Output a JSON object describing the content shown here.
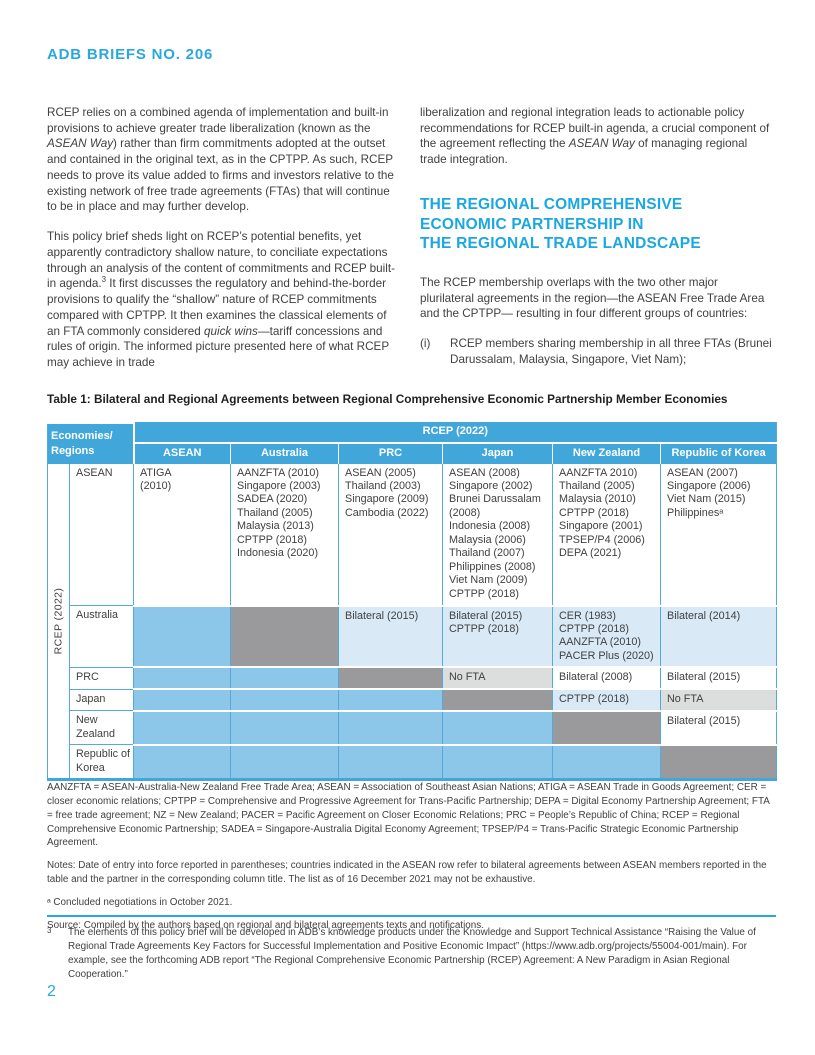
{
  "header": {
    "brief_title": "ADB BRIEFS NO. 206"
  },
  "colors": {
    "accent": "#29a8e0",
    "heading_blue": "#1ba7e0",
    "table_header_blue": "#41a7da",
    "table_corner_blue": "#2f9dd3",
    "cell_blue": "#8cc6e9",
    "cell_lightblue": "#d9eaf6",
    "cell_gray": "#9a9a9c",
    "cell_lightgray": "#dcdddd",
    "table_border_blue": "#54abdb"
  },
  "body": {
    "left_col": {
      "para1": [
        {
          "t": "RCEP relies on a combined agenda of implementation and built-in provisions to achieve greater trade liberalization (known as the "
        },
        {
          "t": "ASEAN Way",
          "style": "i"
        },
        {
          "t": ") rather than firm commitments adopted at the outset and contained in the original text, as in the CPTPP. As such, RCEP needs to prove its value added to firms and investors relative to the existing network of free trade agreements (FTAs) that will continue to be in place and may further develop."
        }
      ],
      "para2": [
        {
          "t": "This policy brief sheds light on RCEP’s potential benefits, yet apparently contradictory shallow nature, to conciliate expectations through an analysis of the content of commitments and RCEP built-in agenda."
        },
        {
          "t": "3",
          "style": "sup"
        },
        {
          "t": " It first discusses the regulatory and behind-the-border provisions to qualify the “shallow” nature of RCEP commitments compared with CPTPP. It then examines the classical elements of an FTA commonly considered "
        },
        {
          "t": "quick wins",
          "style": "i"
        },
        {
          "t": "—tariff concessions and rules of origin. The informed picture presented here of what RCEP may achieve in trade"
        }
      ]
    },
    "right_col": {
      "para1": [
        {
          "t": "liberalization and regional integration leads to actionable policy recommendations for RCEP built-in agenda, a crucial component of the agreement reflecting the "
        },
        {
          "t": "ASEAN Way",
          "style": "i"
        },
        {
          "t": " of managing regional trade integration."
        }
      ],
      "section_heading_lines": [
        "THE REGIONAL COMPREHENSIVE",
        "ECONOMIC PARTNERSHIP IN",
        "THE REGIONAL TRADE LANDSCAPE"
      ],
      "para2": "The RCEP membership overlaps with the two other major plurilateral agreements in the region—the ASEAN Free Trade Area and the CPTPP— resulting in four different groups of countries:",
      "list": [
        {
          "marker": "(i)",
          "text": "RCEP members sharing membership in all three FTAs (Brunei Darussalam, Malaysia, Singapore, Viet Nam);"
        }
      ]
    }
  },
  "table": {
    "title": "Table 1: Bilateral and Regional Agreements between Regional Comprehensive Economic Partnership Member Economies",
    "corner_lines": [
      "Economies/",
      "Regions"
    ],
    "group_header": "RCEP (2022)",
    "columns": [
      "ASEAN",
      "Australia",
      "PRC",
      "Japan",
      "New Zealand",
      "Republic of Korea"
    ],
    "row_axis_label": "RCEP (2022)",
    "rows": [
      {
        "label": "ASEAN",
        "cells": [
          {
            "type": "white",
            "lines": [
              "ATIGA",
              "(2010)"
            ]
          },
          {
            "type": "white",
            "lines": [
              "AANZFTA (2010)",
              "Singapore (2003)",
              "SADEA (2020)",
              "Thailand (2005)",
              "Malaysia (2013)",
              "CPTPP (2018)",
              "Indonesia (2020)"
            ]
          },
          {
            "type": "white",
            "lines": [
              "ASEAN (2005)",
              "Thailand (2003)",
              "Singapore (2009)",
              "Cambodia (2022)"
            ]
          },
          {
            "type": "white",
            "lines": [
              "ASEAN (2008)",
              "Singapore (2002)",
              "Brunei Darussalam",
              "(2008)",
              "Indonesia (2008)",
              "Malaysia (2006)",
              "Thailand (2007)",
              "Philippines (2008)",
              "Viet Nam (2009)",
              "CPTPP (2018)"
            ]
          },
          {
            "type": "white",
            "lines": [
              "AANZFTA 2010)",
              "Thailand (2005)",
              "Malaysia (2010)",
              "CPTPP (2018)",
              "Singapore (2001)",
              "TPSEP/P4 (2006)",
              "DEPA (2021)"
            ]
          },
          {
            "type": "white",
            "lines": [
              "ASEAN (2007)",
              "Singapore (2006)",
              "Viet Nam (2015)",
              "Philippinesᵃ"
            ]
          }
        ]
      },
      {
        "label": "Australia",
        "cells": [
          {
            "type": "blue",
            "lines": []
          },
          {
            "type": "gray",
            "lines": []
          },
          {
            "type": "lightblue",
            "lines": [
              "Bilateral (2015)"
            ]
          },
          {
            "type": "lightblue",
            "lines": [
              "Bilateral (2015)",
              "CPTPP (2018)"
            ]
          },
          {
            "type": "lightblue",
            "lines": [
              "CER (1983)",
              "CPTPP (2018)",
              "AANZFTA (2010)",
              "PACER Plus (2020)"
            ]
          },
          {
            "type": "lightblue",
            "lines": [
              "Bilateral (2014)"
            ]
          }
        ]
      },
      {
        "label": "PRC",
        "cells": [
          {
            "type": "blue",
            "lines": []
          },
          {
            "type": "blue",
            "lines": []
          },
          {
            "type": "gray",
            "lines": []
          },
          {
            "type": "lightgray",
            "lines": [
              "No FTA"
            ]
          },
          {
            "type": "white",
            "lines": [
              "Bilateral (2008)"
            ]
          },
          {
            "type": "white",
            "lines": [
              "Bilateral (2015)"
            ]
          }
        ]
      },
      {
        "label": "Japan",
        "cells": [
          {
            "type": "blue",
            "lines": []
          },
          {
            "type": "blue",
            "lines": []
          },
          {
            "type": "blue",
            "lines": []
          },
          {
            "type": "gray",
            "lines": []
          },
          {
            "type": "lightblue",
            "lines": [
              "CPTPP (2018)"
            ]
          },
          {
            "type": "lightgray",
            "lines": [
              "No FTA"
            ]
          }
        ]
      },
      {
        "label": "New Zealand",
        "cells": [
          {
            "type": "blue",
            "lines": []
          },
          {
            "type": "blue",
            "lines": []
          },
          {
            "type": "blue",
            "lines": []
          },
          {
            "type": "blue",
            "lines": []
          },
          {
            "type": "gray",
            "lines": []
          },
          {
            "type": "white",
            "lines": [
              "Bilateral (2015)"
            ]
          }
        ]
      },
      {
        "label": "Republic of Korea",
        "cells": [
          {
            "type": "blue",
            "lines": []
          },
          {
            "type": "blue",
            "lines": []
          },
          {
            "type": "blue",
            "lines": []
          },
          {
            "type": "blue",
            "lines": []
          },
          {
            "type": "blue",
            "lines": []
          },
          {
            "type": "gray",
            "lines": []
          }
        ]
      }
    ]
  },
  "table_notes": {
    "abbreviations": "AANZFTA = ASEAN-Australia-New Zealand Free Trade Area; ASEAN = Association of Southeast Asian Nations; ATIGA = ASEAN Trade in Goods Agreement; CER = closer economic relations; CPTPP = Comprehensive and Progressive Agreement for Trans-Pacific Partnership; DEPA = Digital Economy Partnership Agreement; FTA = free trade agreement; NZ = New Zealand; PACER = Pacific Agreement on Closer Economic Relations; PRC = People’s Republic of China; RCEP = Regional Comprehensive Economic Partnership; SADEA = Singapore-Australia Digital Economy Agreement; TPSEP/P4 = Trans-Pacific Strategic Economic Partnership Agreement.",
    "notes": "Notes: Date of entry into force reported in parentheses; countries indicated in the ASEAN row refer to bilateral agreements between ASEAN members reported in the table and the partner in the corresponding column title. The list as of 16 December 2021 may not be exhaustive.",
    "footnote_a": "ᵃ Concluded negotiations in October 2021.",
    "source": "Source: Compiled by the authors based on regional and bilateral agreements texts and notifications."
  },
  "footnotes": [
    {
      "marker": "3",
      "text": "The elements of this policy brief will be developed in ADB’s knowledge products under the Knowledge and Support Technical Assistance “Raising the Value of Regional Trade Agreements Key Factors for Successful Implementation and Positive Economic Impact” (https://www.adb.org/projects/55004-001/main). For example, see the forthcoming ADB report “The Regional Comprehensive Economic Partnership (RCEP) Agreement: A New Paradigm in Asian Regional Cooperation.”"
    }
  ],
  "page": {
    "number": "2"
  }
}
